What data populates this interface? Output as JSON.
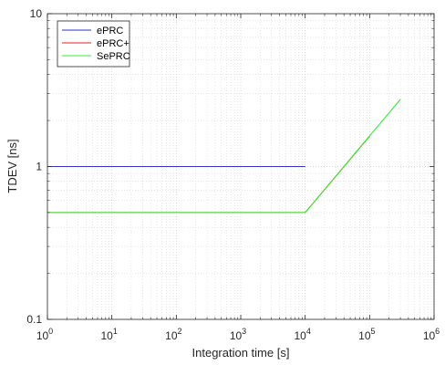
{
  "chart_data": {
    "type": "line",
    "xlabel": "Integration time [s]",
    "ylabel": "TDEV [ns]",
    "xscale": "log",
    "yscale": "log",
    "xlim": [
      1,
      1000000
    ],
    "ylim": [
      0.1,
      10
    ],
    "grid": true,
    "legend_position": "top-left",
    "x_ticks": [
      {
        "value": 1,
        "base": "10",
        "exp": "0"
      },
      {
        "value": 10,
        "base": "10",
        "exp": "1"
      },
      {
        "value": 100,
        "base": "10",
        "exp": "2"
      },
      {
        "value": 1000,
        "base": "10",
        "exp": "3"
      },
      {
        "value": 10000,
        "base": "10",
        "exp": "4"
      },
      {
        "value": 100000,
        "base": "10",
        "exp": "5"
      },
      {
        "value": 1000000,
        "base": "10",
        "exp": "6"
      }
    ],
    "y_ticks": [
      {
        "value": 0.1,
        "label": "0.1"
      },
      {
        "value": 1,
        "label": "1"
      },
      {
        "value": 10,
        "label": "10"
      }
    ],
    "series": [
      {
        "name": "ePRC",
        "color": "#3333cc",
        "points": [
          [
            1,
            1.0
          ],
          [
            10000,
            1.0
          ]
        ]
      },
      {
        "name": "ePRC+",
        "color": "#ee2222",
        "points": [
          [
            1,
            0.5
          ],
          [
            10000,
            0.5
          ],
          [
            100000,
            1.58
          ]
        ]
      },
      {
        "name": "SePRC",
        "color": "#33ee33",
        "points": [
          [
            1,
            0.5
          ],
          [
            10000,
            0.5
          ],
          [
            300000,
            2.75
          ]
        ]
      }
    ]
  }
}
